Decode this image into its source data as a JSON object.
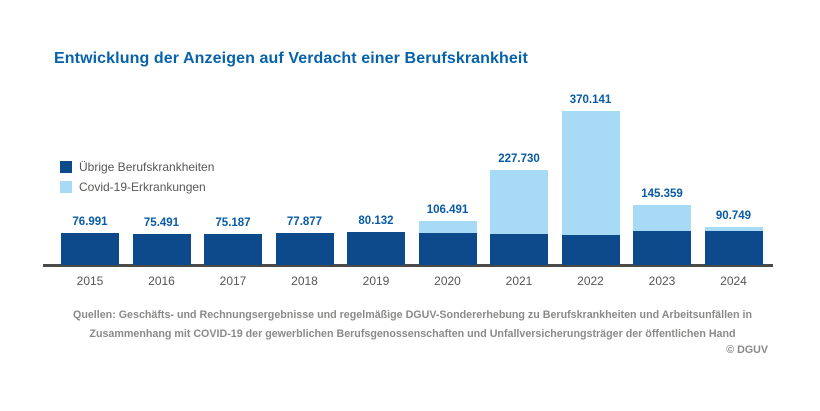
{
  "title": "Entwicklung der Anzeigen auf Verdacht einer Berufskrankheit",
  "legend": {
    "items": [
      {
        "label": "Übrige Berufskrankheiten",
        "color": "#0c4a8c"
      },
      {
        "label": "Covid-19-Erkrankungen",
        "color": "#a6daf5"
      }
    ]
  },
  "chart_data": {
    "type": "bar",
    "stacked": true,
    "title": "Entwicklung der Anzeigen auf Verdacht einer Berufskrankheit",
    "categories": [
      "2015",
      "2016",
      "2017",
      "2018",
      "2019",
      "2020",
      "2021",
      "2022",
      "2023",
      "2024"
    ],
    "series": [
      {
        "name": "Übrige Berufskrankheiten",
        "color": "#0c4a8c",
        "values": [
          76991,
          75491,
          75187,
          77877,
          80132,
          76191,
          75330,
          72341,
          82459,
          82749
        ]
      },
      {
        "name": "Covid-19-Erkrankungen",
        "color": "#a6daf5",
        "values": [
          0,
          0,
          0,
          0,
          0,
          30300,
          152400,
          297800,
          62900,
          8000
        ],
        "values_estimated_from_pixels": true
      }
    ],
    "totals": [
      76991,
      75491,
      75187,
      77877,
      80132,
      106491,
      227730,
      370141,
      145359,
      90749
    ],
    "total_labels": [
      "76.991",
      "75.491",
      "75.187",
      "77.877",
      "80.132",
      "106.491",
      "227.730",
      "370.141",
      "145.359",
      "90.749"
    ],
    "xlabel": "",
    "ylabel": "",
    "ylim": [
      0,
      380000
    ],
    "grid": false,
    "legend_position": "middle-left",
    "value_labels": "above bars, German thousands separator"
  },
  "footer": {
    "source_line1": "Quellen: Geschäfts- und Rechnungsergebnisse und regelmäßige DGUV-Sondererhebung zu Berufskrankheiten und Arbeitsunfällen in",
    "source_line2": "Zusammenhang mit COVID-19 der gewerblichen Berufsgenossenschaften und Unfallversicherungsträger der öffentlichen Hand",
    "copyright": "© DGUV"
  },
  "colors": {
    "title_blue": "#0762ab",
    "value_label_blue": "#085ba6",
    "bar_dark_blue": "#0c4a8c",
    "bar_light_blue": "#a6daf5",
    "axis_gray": "#4a4a49",
    "text_gray": "#575756",
    "footer_gray": "#8a8a89",
    "background": "#ffffff"
  }
}
